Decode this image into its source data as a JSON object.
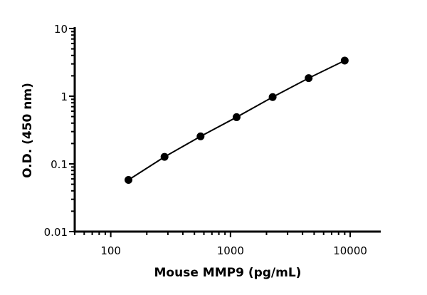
{
  "chart_data": {
    "type": "line",
    "title": "",
    "xlabel": "Mouse MMP9 (pg/mL)",
    "ylabel": "O.D. (450 nm)",
    "xscale": "log",
    "yscale": "log",
    "xlim": [
      50,
      18000
    ],
    "ylim": [
      0.01,
      10
    ],
    "xticks": [
      {
        "value": 100,
        "label": "100"
      },
      {
        "value": 1000,
        "label": "1000"
      },
      {
        "value": 10000,
        "label": "10000"
      }
    ],
    "yticks": [
      {
        "value": 0.01,
        "label": "0.01"
      },
      {
        "value": 0.1,
        "label": "0.1"
      },
      {
        "value": 1,
        "label": "1"
      },
      {
        "value": 10,
        "label": "10"
      }
    ],
    "grid": false,
    "series": [
      {
        "x": [
          140.6,
          281.3,
          562.5,
          1125,
          2250,
          4500,
          9000
        ],
        "y": [
          0.058,
          0.127,
          0.255,
          0.49,
          0.97,
          1.85,
          3.36
        ],
        "color": "#000000",
        "marker": "circle"
      }
    ]
  }
}
